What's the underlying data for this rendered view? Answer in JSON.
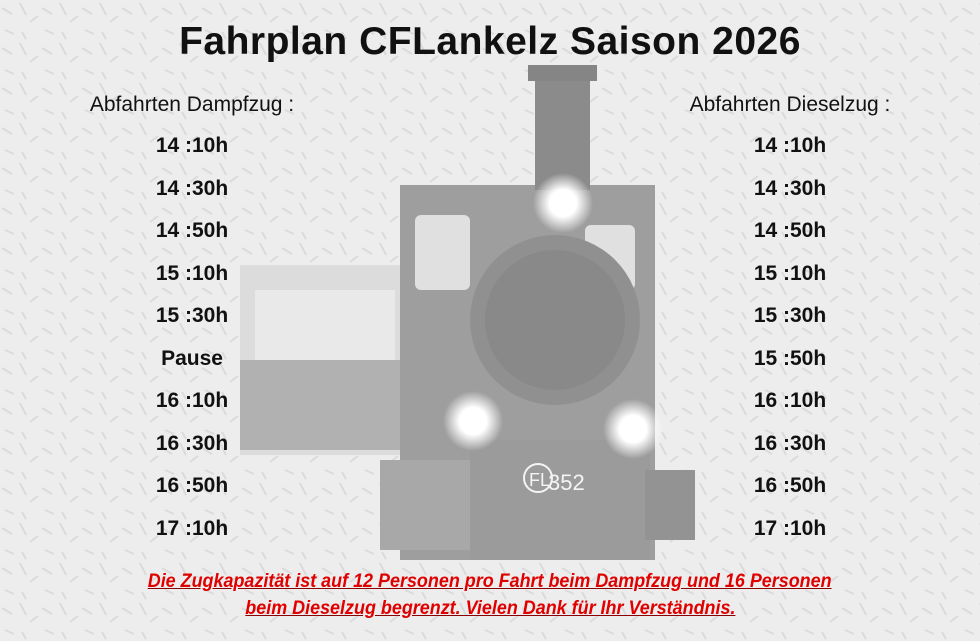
{
  "title": "Fahrplan CFLankelz Saison 2026",
  "steam": {
    "heading": "Abfahrten Dampfzug :",
    "times": [
      "14 :10h",
      "14 :30h",
      "14 :50h",
      "15 :10h",
      "15 :30h",
      "Pause",
      "16 :10h",
      "16 :30h",
      "16 :50h",
      "17 :10h"
    ]
  },
  "diesel": {
    "heading": "Abfahrten Dieselzug :",
    "times": [
      "14 :10h",
      "14 :30h",
      "14 :50h",
      "15 :10h",
      "15 :30h",
      "15 :50h",
      "16 :10h",
      "16 :30h",
      "16 :50h",
      "17 :10h"
    ]
  },
  "notice": {
    "line1": "Die Zugkapazität ist auf 12 Personen pro Fahrt beim Dampfzug und 16 Personen",
    "line2": "beim Dieselzug begrenzt. Vielen Dank für Ihr Verständnis."
  },
  "photo": {
    "plate_logo": "CFL",
    "plate_number": "352"
  },
  "colors": {
    "notice": "#e00000",
    "text": "#111111"
  }
}
